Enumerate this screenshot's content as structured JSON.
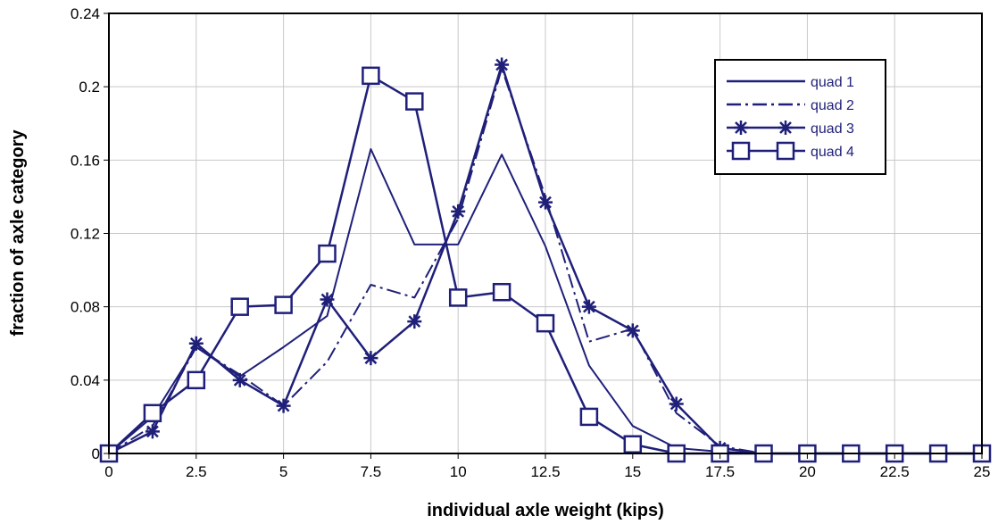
{
  "chart_data": {
    "type": "line",
    "title": "",
    "xlabel": "individual axle weight (kips)",
    "ylabel": "fraction of axle category",
    "xlim": [
      0,
      25
    ],
    "ylim": [
      0,
      0.24
    ],
    "x_ticks": [
      "0",
      "2.5",
      "5",
      "7.5",
      "10",
      "12.5",
      "15",
      "17.5",
      "20",
      "22.5",
      "25"
    ],
    "y_ticks": [
      "0",
      "0.04",
      "0.08",
      "0.12",
      "0.16",
      "0.2",
      "0.24"
    ],
    "grid": true,
    "legend_position": "top-right",
    "line_color": "#1f1f7a",
    "x": [
      0,
      1.25,
      2.5,
      3.75,
      5,
      6.25,
      7.5,
      8.75,
      10,
      11.25,
      12.5,
      13.75,
      15,
      16.25,
      17.5,
      18.75,
      20,
      21.25,
      22.5,
      23.75,
      25
    ],
    "series": [
      {
        "name": "quad 1",
        "style": "solid",
        "marker": "none",
        "values": [
          0,
          0.02,
          0.058,
          0.042,
          0.058,
          0.075,
          0.166,
          0.114,
          0.114,
          0.163,
          0.113,
          0.048,
          0.015,
          0.003,
          0.001,
          0,
          0,
          0,
          0,
          0,
          0
        ]
      },
      {
        "name": "quad 2",
        "style": "dashdot",
        "marker": "none",
        "values": [
          0,
          0.015,
          0.058,
          0.043,
          0.026,
          0.05,
          0.092,
          0.085,
          0.128,
          0.21,
          0.14,
          0.061,
          0.068,
          0.022,
          0.004,
          0,
          0,
          0,
          0,
          0,
          0
        ]
      },
      {
        "name": "quad 3",
        "style": "solid",
        "marker": "star",
        "values": [
          0,
          0.012,
          0.06,
          0.04,
          0.026,
          0.084,
          0.052,
          0.072,
          0.132,
          0.212,
          0.137,
          0.08,
          0.067,
          0.027,
          0.003,
          0,
          0,
          0,
          0,
          0,
          0
        ]
      },
      {
        "name": "quad 4",
        "style": "solid",
        "marker": "square",
        "values": [
          0,
          0.022,
          0.04,
          0.08,
          0.081,
          0.109,
          0.206,
          0.192,
          0.085,
          0.088,
          0.071,
          0.02,
          0.005,
          0,
          0,
          0,
          0,
          0,
          0,
          0,
          0
        ]
      }
    ]
  }
}
